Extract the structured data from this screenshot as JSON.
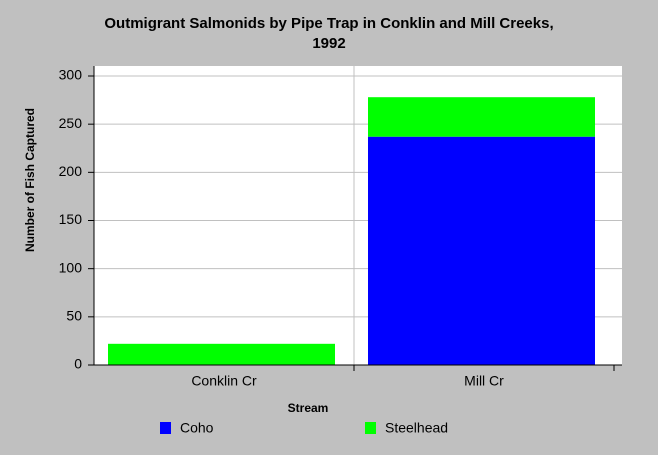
{
  "chart_data": {
    "type": "stacked_bar",
    "title": [
      "Outmigrant Salmonids by Pipe Trap in Conklin and Mill Creeks,",
      "1992"
    ],
    "x_label": "Stream",
    "y_label": "Number of Fish Captured",
    "categories": [
      "Conklin Cr",
      "Mill Cr"
    ],
    "series": [
      {
        "name": "Coho",
        "color": "#0000ff",
        "values": [
          0,
          237
        ]
      },
      {
        "name": "Steelhead",
        "color": "#00ff00",
        "values": [
          22,
          41
        ]
      }
    ],
    "ylim": [
      0,
      300
    ],
    "yticks": [
      0,
      50,
      100,
      150,
      200,
      250,
      300
    ],
    "grid": true
  }
}
